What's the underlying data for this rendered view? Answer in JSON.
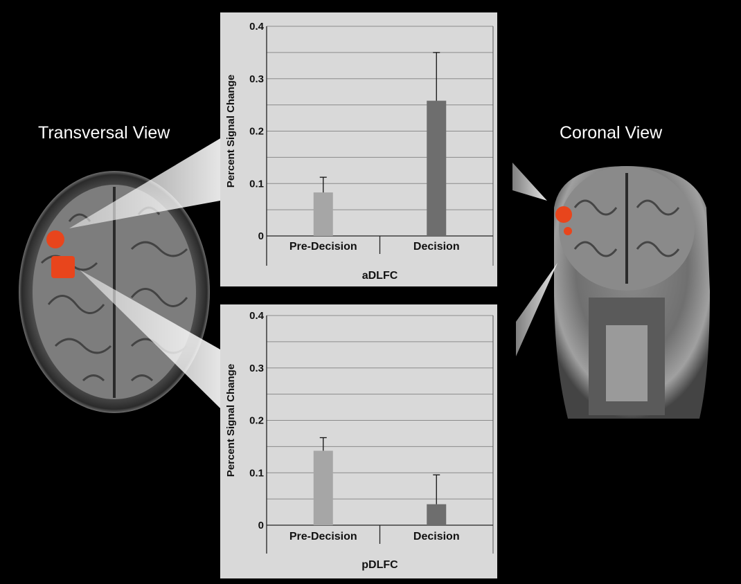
{
  "labels": {
    "left_view": "Transversal View",
    "right_view": "Coronal View"
  },
  "colors": {
    "background": "#000000",
    "panel": "#d9d9d9",
    "bar_pre": "#a6a6a6",
    "bar_decision": "#6e6e6e",
    "activation": "#e8451c"
  },
  "chart_data": [
    {
      "type": "bar",
      "title": "",
      "xlabel": "aDLFC",
      "ylabel": "Percent Signal Change",
      "ylim": [
        0,
        0.4
      ],
      "yticks": [
        "0",
        "0.1",
        "0.2",
        "0.3",
        "0.4"
      ],
      "grid": true,
      "categories": [
        "Pre-Decision",
        "Decision"
      ],
      "values": [
        0.083,
        0.258
      ],
      "error_upper": [
        0.112,
        0.35
      ]
    },
    {
      "type": "bar",
      "title": "",
      "xlabel": "pDLFC",
      "ylabel": "Percent Signal Change",
      "ylim": [
        0,
        0.4
      ],
      "yticks": [
        "0",
        "0.1",
        "0.2",
        "0.3",
        "0.4"
      ],
      "grid": true,
      "categories": [
        "Pre-Decision",
        "Decision"
      ],
      "values": [
        0.142,
        0.04
      ],
      "error_upper": [
        0.167,
        0.096
      ]
    }
  ]
}
